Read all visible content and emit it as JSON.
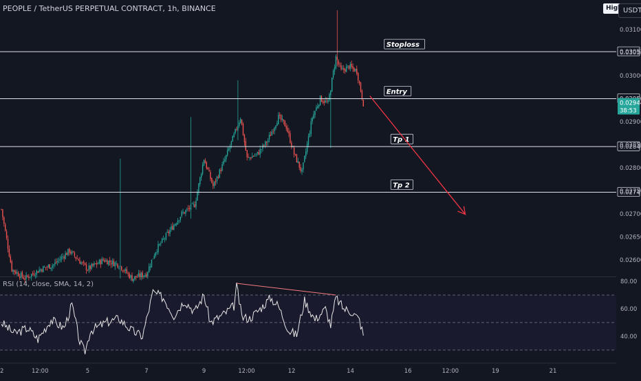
{
  "header": {
    "symbol_title": "PEOPLE / TetherUS PERPETUAL CONTRACT, 1h, BINANCE",
    "high_badge": "High",
    "currency_badge": "USDT"
  },
  "rsi_panel": {
    "title": "RSI (14, close, SMA, 14, 2)"
  },
  "colors": {
    "background": "#131722",
    "rsi_band": "#1a1a2e",
    "up": "#26a69a",
    "down": "#ef5350",
    "level": "#e0e3eb",
    "rsi_line": "#e8e8e8",
    "arrow": "#f23645",
    "label_current": "#26a69a"
  },
  "chart_data": [
    {
      "type": "candlestick",
      "y_axis_ticks": [
        "0.03100",
        "0.03050",
        "0.03000",
        "0.02950",
        "0.02900",
        "0.02850",
        "0.02800",
        "0.02750",
        "0.02700",
        "0.02650",
        "0.02600"
      ],
      "y_axis_values": [
        0.031,
        0.0305,
        0.03,
        0.0295,
        0.029,
        0.0285,
        0.028,
        0.0275,
        0.027,
        0.0265,
        0.026
      ],
      "ylim": [
        0.02577,
        0.03142
      ],
      "x_axis_ticks": [
        "2",
        "12:00",
        "5",
        "7",
        "9",
        "12:00",
        "12",
        "14",
        "16",
        "12:00",
        "19",
        "21"
      ],
      "x_axis_bars": [
        0,
        30,
        66,
        111,
        155,
        188,
        222,
        267,
        311,
        344,
        378,
        422
      ],
      "levels": [
        {
          "name": "Stoploss",
          "value": 0.03052,
          "label": "0.03052"
        },
        {
          "name": "Entry",
          "value": 0.0295,
          "label": "0.02950"
        },
        {
          "name": "Tp 1",
          "value": 0.02846,
          "label": "0.02846"
        },
        {
          "name": "Tp 2",
          "value": 0.02747,
          "label": "0.02747"
        }
      ],
      "current_price": {
        "value": 0.02944,
        "label": "0.02944",
        "countdown": "38:53"
      },
      "projection": {
        "from": {
          "bar": 282,
          "price": 0.0295
        },
        "to": {
          "bar": 355,
          "price": 0.02699
        }
      },
      "anchors": [
        {
          "bar": 0,
          "price": 0.0271
        },
        {
          "bar": 8,
          "price": 0.0258
        },
        {
          "bar": 18,
          "price": 0.0256
        },
        {
          "bar": 30,
          "price": 0.0258
        },
        {
          "bar": 40,
          "price": 0.0259
        },
        {
          "bar": 52,
          "price": 0.0262
        },
        {
          "bar": 66,
          "price": 0.0258
        },
        {
          "bar": 78,
          "price": 0.026
        },
        {
          "bar": 90,
          "price": 0.0259
        },
        {
          "bar": 100,
          "price": 0.0256
        },
        {
          "bar": 111,
          "price": 0.0257
        },
        {
          "bar": 118,
          "price": 0.0262
        },
        {
          "bar": 128,
          "price": 0.0266
        },
        {
          "bar": 138,
          "price": 0.027
        },
        {
          "bar": 148,
          "price": 0.0272
        },
        {
          "bar": 155,
          "price": 0.0282
        },
        {
          "bar": 162,
          "price": 0.0276
        },
        {
          "bar": 170,
          "price": 0.0281
        },
        {
          "bar": 178,
          "price": 0.0287
        },
        {
          "bar": 183,
          "price": 0.0291
        },
        {
          "bar": 188,
          "price": 0.0282
        },
        {
          "bar": 196,
          "price": 0.0283
        },
        {
          "bar": 204,
          "price": 0.0286
        },
        {
          "bar": 212,
          "price": 0.0291
        },
        {
          "bar": 218,
          "price": 0.0289
        },
        {
          "bar": 224,
          "price": 0.0283
        },
        {
          "bar": 230,
          "price": 0.0279
        },
        {
          "bar": 238,
          "price": 0.0291
        },
        {
          "bar": 244,
          "price": 0.0295
        },
        {
          "bar": 250,
          "price": 0.0294
        },
        {
          "bar": 256,
          "price": 0.0304
        },
        {
          "bar": 260,
          "price": 0.0301
        },
        {
          "bar": 266,
          "price": 0.0302
        },
        {
          "bar": 272,
          "price": 0.0301
        },
        {
          "bar": 277,
          "price": 0.0294
        }
      ],
      "spikes": [
        {
          "bar": 91,
          "high": 0.0282,
          "low": 0.0256
        },
        {
          "bar": 145,
          "high": 0.0291,
          "low": 0.0269
        },
        {
          "bar": 181,
          "high": 0.0299,
          "low": 0.0286
        },
        {
          "bar": 252,
          "high": 0.0296,
          "low": 0.02843
        },
        {
          "bar": 257,
          "high": 0.03142,
          "low": 0.0302
        }
      ]
    },
    {
      "type": "line",
      "name": "RSI (14, close, SMA, 14, 2)",
      "y_axis_ticks": [
        "80.00",
        "60.00",
        "40.00"
      ],
      "y_axis_values": [
        80,
        60,
        40
      ],
      "ylim": [
        26,
        82
      ],
      "bands": [
        70,
        50,
        30
      ],
      "divergence": {
        "from": {
          "bar": 180,
          "value": 78.5
        },
        "to": {
          "bar": 256,
          "value": 70
        }
      },
      "anchors": [
        {
          "bar": 0,
          "value": 50
        },
        {
          "bar": 10,
          "value": 42
        },
        {
          "bar": 20,
          "value": 46
        },
        {
          "bar": 28,
          "value": 38
        },
        {
          "bar": 38,
          "value": 52
        },
        {
          "bar": 48,
          "value": 46
        },
        {
          "bar": 54,
          "value": 63
        },
        {
          "bar": 60,
          "value": 36
        },
        {
          "bar": 64,
          "value": 28
        },
        {
          "bar": 68,
          "value": 44
        },
        {
          "bar": 80,
          "value": 50
        },
        {
          "bar": 90,
          "value": 53
        },
        {
          "bar": 100,
          "value": 44
        },
        {
          "bar": 108,
          "value": 40
        },
        {
          "bar": 116,
          "value": 72
        },
        {
          "bar": 124,
          "value": 68
        },
        {
          "bar": 132,
          "value": 55
        },
        {
          "bar": 140,
          "value": 66
        },
        {
          "bar": 148,
          "value": 58
        },
        {
          "bar": 155,
          "value": 70
        },
        {
          "bar": 160,
          "value": 50
        },
        {
          "bar": 170,
          "value": 56
        },
        {
          "bar": 178,
          "value": 62
        },
        {
          "bar": 180,
          "value": 77
        },
        {
          "bar": 184,
          "value": 54
        },
        {
          "bar": 190,
          "value": 53
        },
        {
          "bar": 198,
          "value": 60
        },
        {
          "bar": 206,
          "value": 68
        },
        {
          "bar": 212,
          "value": 62
        },
        {
          "bar": 220,
          "value": 44
        },
        {
          "bar": 226,
          "value": 41
        },
        {
          "bar": 232,
          "value": 66
        },
        {
          "bar": 240,
          "value": 52
        },
        {
          "bar": 248,
          "value": 60
        },
        {
          "bar": 252,
          "value": 48
        },
        {
          "bar": 256,
          "value": 68
        },
        {
          "bar": 262,
          "value": 60
        },
        {
          "bar": 268,
          "value": 58
        },
        {
          "bar": 274,
          "value": 52
        },
        {
          "bar": 277,
          "value": 41
        }
      ]
    }
  ]
}
